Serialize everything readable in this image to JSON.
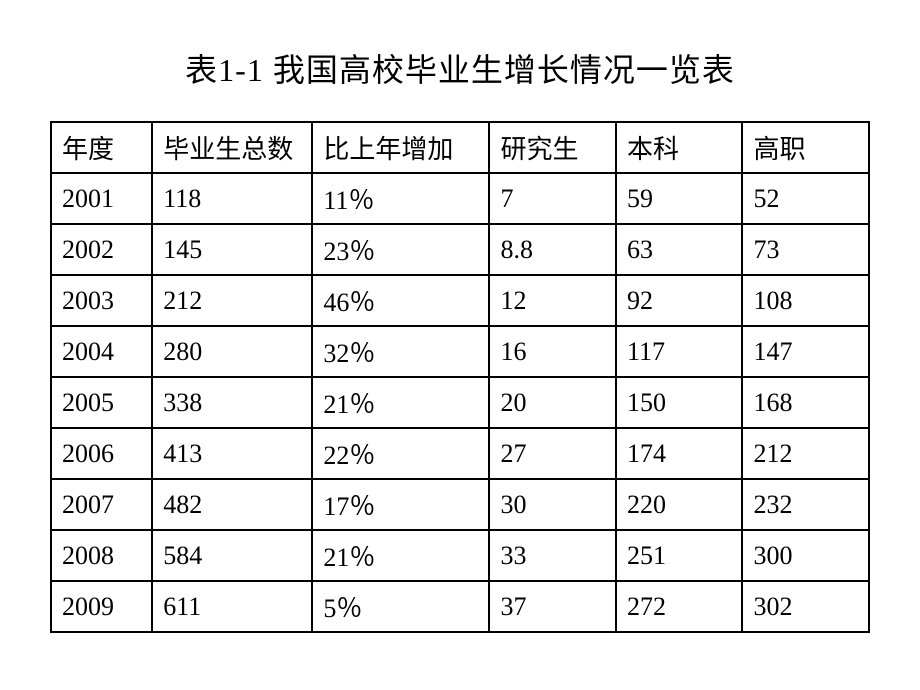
{
  "title": "表1-1 我国高校毕业生增长情况一览表",
  "table": {
    "type": "table",
    "border_color": "#000000",
    "background_color": "#ffffff",
    "text_color": "#000000",
    "font_size": 26,
    "title_fontsize": 32,
    "columns": [
      {
        "key": "year",
        "label": "年度",
        "width": "12%"
      },
      {
        "key": "total",
        "label": "毕业生总数",
        "width": "19%"
      },
      {
        "key": "increase",
        "label": "比上年增加",
        "width": "21%"
      },
      {
        "key": "grad",
        "label": "研究生",
        "width": "15%"
      },
      {
        "key": "undergrad",
        "label": "本科",
        "width": "15%"
      },
      {
        "key": "vocational",
        "label": "高职",
        "width": "15%"
      }
    ],
    "rows": [
      {
        "year": "2001",
        "total": "118",
        "increase": "11％",
        "grad": "7",
        "undergrad": "59",
        "vocational": "52"
      },
      {
        "year": "2002",
        "total": "145",
        "increase": "23％",
        "grad": "8.8",
        "undergrad": "63",
        "vocational": "73"
      },
      {
        "year": "2003",
        "total": "212",
        "increase": "46％",
        "grad": "12",
        "undergrad": "92",
        "vocational": "108"
      },
      {
        "year": "2004",
        "total": "280",
        "increase": "32％",
        "grad": "16",
        "undergrad": "117",
        "vocational": "147"
      },
      {
        "year": "2005",
        "total": "338",
        "increase": "21％",
        "grad": "20",
        "undergrad": "150",
        "vocational": "168"
      },
      {
        "year": "2006",
        "total": "413",
        "increase": "22％",
        "grad": "27",
        "undergrad": "174",
        "vocational": "212"
      },
      {
        "year": "2007",
        "total": "482",
        "increase": "17％",
        "grad": "30",
        "undergrad": "220",
        "vocational": "232"
      },
      {
        "year": "2008",
        "total": "584",
        "increase": "21％",
        "grad": "33",
        "undergrad": "251",
        "vocational": "300"
      },
      {
        "year": "2009",
        "total": "611",
        "increase": "5％",
        "grad": "37",
        "undergrad": "272",
        "vocational": "302"
      }
    ]
  }
}
